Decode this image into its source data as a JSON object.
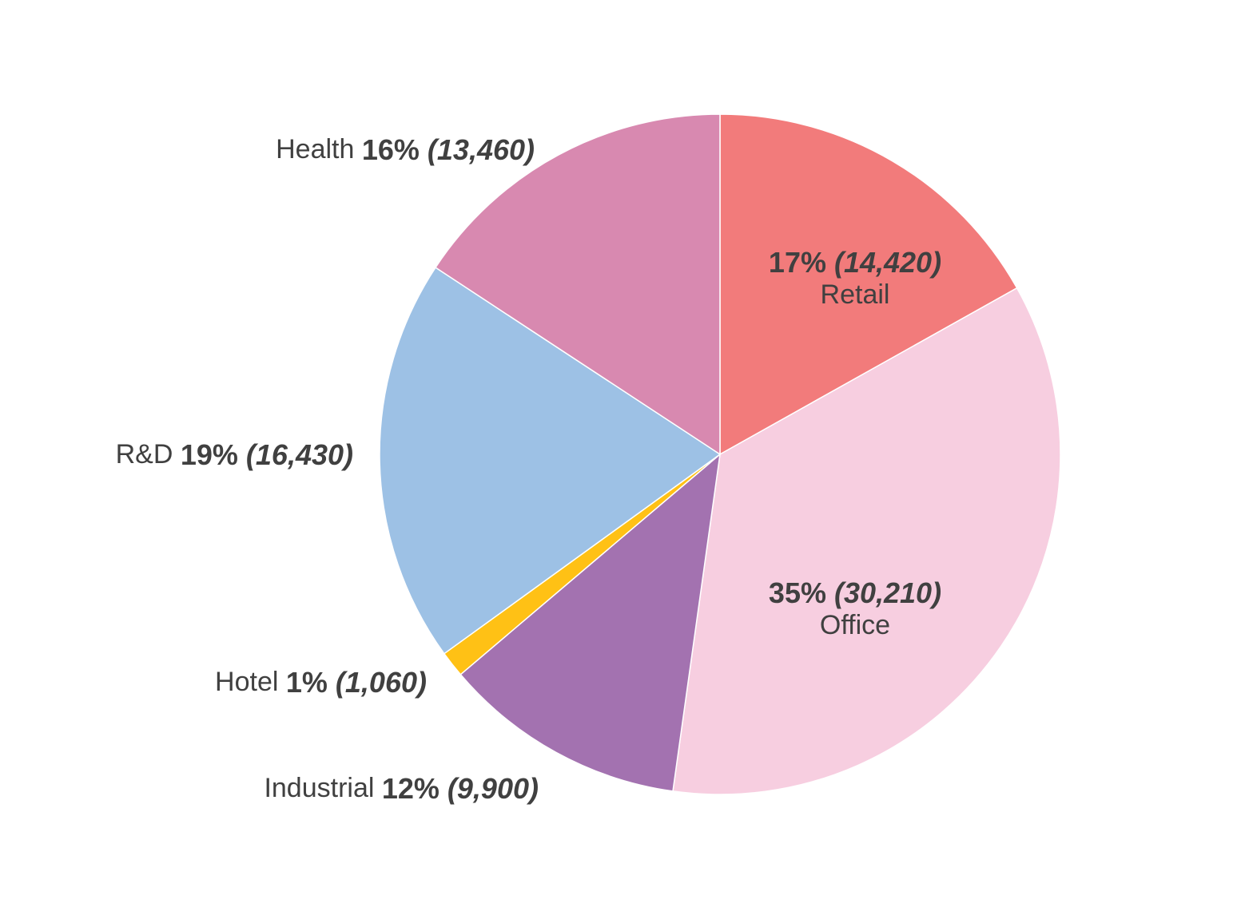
{
  "chart_data": {
    "type": "pie",
    "start_angle_deg": 0,
    "direction": "clockwise",
    "slices": [
      {
        "name": "Retail",
        "percent_label": "17%",
        "value_label": "(14,420)",
        "value": 14420,
        "color": "#F27B7B",
        "label_style": "inside"
      },
      {
        "name": "Office",
        "percent_label": "35%",
        "value_label": "(30,210)",
        "value": 30210,
        "color": "#F7CEE0",
        "label_style": "inside"
      },
      {
        "name": "Industrial",
        "percent_label": "12%",
        "value_label": "(9,900)",
        "value": 9900,
        "color": "#A372B0",
        "label_style": "outside"
      },
      {
        "name": "Hotel",
        "percent_label": "1%",
        "value_label": "(1,060)",
        "value": 1060,
        "color": "#FFC115",
        "label_style": "outside"
      },
      {
        "name": "R&D",
        "percent_label": "19%",
        "value_label": "(16,430)",
        "value": 16430,
        "color": "#9DC1E5",
        "label_style": "outside"
      },
      {
        "name": "Health",
        "percent_label": "16%",
        "value_label": "(13,460)",
        "value": 13460,
        "color": "#D889B0",
        "label_style": "outside"
      }
    ]
  }
}
